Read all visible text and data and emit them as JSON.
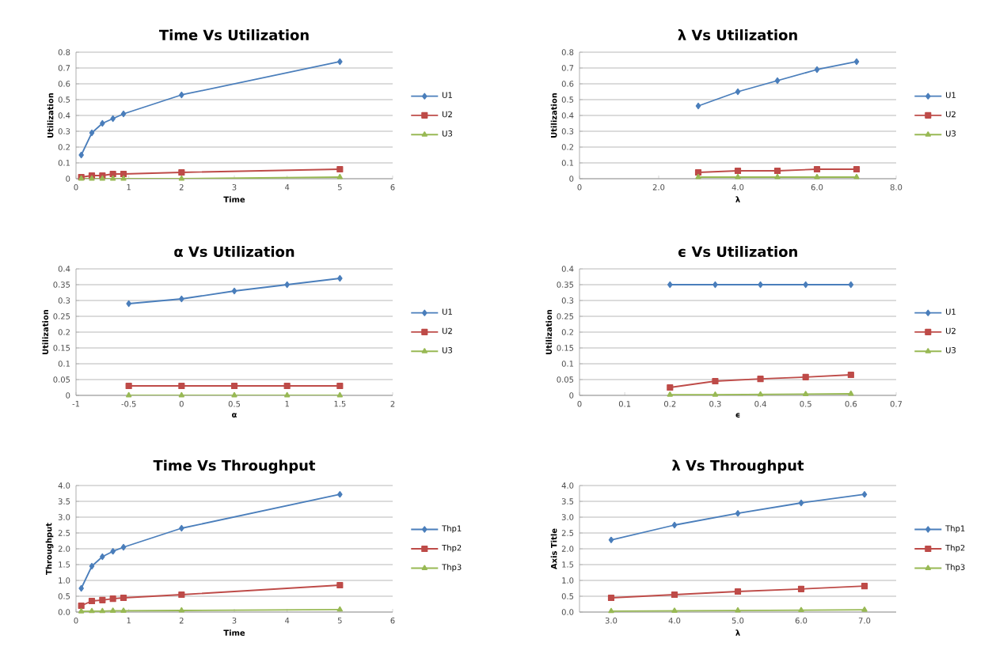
{
  "chart_data": [
    {
      "type": "line",
      "title": "Time Vs Utilization",
      "xlabel": "Time",
      "ylabel": "Utilization",
      "x": [
        0.1,
        0.3,
        0.5,
        0.7,
        0.9,
        2,
        5
      ],
      "xlim": [
        0,
        6
      ],
      "xticks": [
        0,
        1,
        2,
        3,
        4,
        5,
        6
      ],
      "ylim": [
        0,
        0.8
      ],
      "yticks": [
        0,
        0.1,
        0.2,
        0.3,
        0.4,
        0.5,
        0.6,
        0.7,
        0.8
      ],
      "grid": "y",
      "legend": "right",
      "series": [
        {
          "name": "U1",
          "color": "#4a7ebb",
          "marker": "diamond",
          "values": [
            0.15,
            0.29,
            0.35,
            0.38,
            0.41,
            0.53,
            0.74
          ]
        },
        {
          "name": "U2",
          "color": "#be4b48",
          "marker": "square",
          "values": [
            0.01,
            0.02,
            0.02,
            0.03,
            0.03,
            0.04,
            0.06
          ]
        },
        {
          "name": "U3",
          "color": "#98b954",
          "marker": "triangle",
          "values": [
            0,
            0,
            0,
            0,
            0,
            0,
            0.01
          ]
        }
      ]
    },
    {
      "type": "line",
      "title": "λ Vs Utilization",
      "xlabel": "λ",
      "ylabel": "Utilization",
      "x": [
        3,
        4,
        5,
        6,
        7
      ],
      "xlim": [
        0,
        8
      ],
      "xticks": [
        0,
        {
          "value": 2,
          "label": "2.0"
        },
        {
          "value": 4,
          "label": "4.0"
        },
        {
          "value": 6,
          "label": "6.0"
        },
        {
          "value": 8,
          "label": "8.0"
        }
      ],
      "ylim": [
        0,
        0.8
      ],
      "yticks": [
        0,
        0.1,
        0.2,
        0.3,
        0.4,
        0.5,
        0.6,
        0.7,
        0.8
      ],
      "grid": "y",
      "legend": "right",
      "series": [
        {
          "name": "U1",
          "color": "#4a7ebb",
          "marker": "diamond",
          "values": [
            0.46,
            0.55,
            0.62,
            0.69,
            0.74
          ]
        },
        {
          "name": "U2",
          "color": "#be4b48",
          "marker": "square",
          "values": [
            0.04,
            0.05,
            0.05,
            0.06,
            0.06
          ]
        },
        {
          "name": "U3",
          "color": "#98b954",
          "marker": "triangle",
          "values": [
            0.01,
            0.01,
            0.01,
            0.01,
            0.01
          ]
        }
      ]
    },
    {
      "type": "line",
      "title": "α Vs Utilization",
      "xlabel": "α",
      "ylabel": "Utilization",
      "x": [
        -0.5,
        0,
        0.5,
        1,
        1.5
      ],
      "xlim": [
        -1,
        2
      ],
      "xticks": [
        -1,
        -0.5,
        0,
        0.5,
        1,
        1.5,
        2
      ],
      "ylim": [
        0,
        0.4
      ],
      "yticks": [
        0,
        0.05,
        0.1,
        0.15,
        0.2,
        0.25,
        0.3,
        0.35,
        0.4
      ],
      "grid": "y",
      "legend": "right",
      "series": [
        {
          "name": "U1",
          "color": "#4a7ebb",
          "marker": "diamond",
          "values": [
            0.29,
            0.305,
            0.33,
            0.35,
            0.37
          ]
        },
        {
          "name": "U2",
          "color": "#be4b48",
          "marker": "square",
          "values": [
            0.03,
            0.03,
            0.03,
            0.03,
            0.03
          ]
        },
        {
          "name": "U3",
          "color": "#98b954",
          "marker": "triangle",
          "values": [
            0,
            0,
            0,
            0,
            0
          ]
        }
      ]
    },
    {
      "type": "line",
      "title": "ϵ Vs Utilization",
      "xlabel": "ϵ",
      "ylabel": "Utilization",
      "x": [
        0.2,
        0.3,
        0.4,
        0.5,
        0.6
      ],
      "xlim": [
        0,
        0.7
      ],
      "xticks": [
        0,
        0.1,
        0.2,
        0.3,
        0.4,
        0.5,
        0.6,
        0.7
      ],
      "ylim": [
        0,
        0.4
      ],
      "yticks": [
        0,
        0.05,
        0.1,
        0.15,
        0.2,
        0.25,
        0.3,
        0.35,
        0.4
      ],
      "grid": "y",
      "legend": "right",
      "series": [
        {
          "name": "U1",
          "color": "#4a7ebb",
          "marker": "diamond",
          "values": [
            0.35,
            0.35,
            0.35,
            0.35,
            0.35
          ]
        },
        {
          "name": "U2",
          "color": "#be4b48",
          "marker": "square",
          "values": [
            0.025,
            0.045,
            0.052,
            0.058,
            0.065
          ]
        },
        {
          "name": "U3",
          "color": "#98b954",
          "marker": "triangle",
          "values": [
            0.002,
            0.002,
            0.003,
            0.004,
            0.005
          ]
        }
      ]
    },
    {
      "type": "line",
      "title": "Time Vs Throughput",
      "xlabel": "Time",
      "ylabel": "Throughput",
      "x": [
        0.1,
        0.3,
        0.5,
        0.7,
        0.9,
        2,
        5
      ],
      "xlim": [
        0,
        6
      ],
      "xticks": [
        0,
        1,
        2,
        3,
        4,
        5,
        6
      ],
      "ylim": [
        0,
        4
      ],
      "yticks": [
        {
          "value": 0,
          "label": "0.0"
        },
        {
          "value": 0.5,
          "label": "0.5"
        },
        {
          "value": 1,
          "label": "1.0"
        },
        {
          "value": 1.5,
          "label": "1.5"
        },
        {
          "value": 2,
          "label": "2.0"
        },
        {
          "value": 2.5,
          "label": "2.5"
        },
        {
          "value": 3,
          "label": "3.0"
        },
        {
          "value": 3.5,
          "label": "3.5"
        },
        {
          "value": 4,
          "label": "4.0"
        }
      ],
      "grid": "y",
      "legend": "right",
      "series": [
        {
          "name": "Thp1",
          "color": "#4a7ebb",
          "marker": "diamond",
          "values": [
            0.75,
            1.45,
            1.75,
            1.92,
            2.05,
            2.65,
            3.72
          ]
        },
        {
          "name": "Thp2",
          "color": "#be4b48",
          "marker": "square",
          "values": [
            0.2,
            0.35,
            0.38,
            0.42,
            0.45,
            0.55,
            0.85
          ]
        },
        {
          "name": "Thp3",
          "color": "#98b954",
          "marker": "triangle",
          "values": [
            0.02,
            0.03,
            0.03,
            0.04,
            0.04,
            0.05,
            0.08
          ]
        }
      ]
    },
    {
      "type": "line",
      "title": "λ Vs Throughput",
      "xlabel": "λ",
      "ylabel": "Axis Title",
      "categories": [
        "3.0",
        "4.0",
        "5.0",
        "6.0",
        "7.0"
      ],
      "ylim": [
        0,
        4
      ],
      "yticks": [
        {
          "value": 0,
          "label": "0.0"
        },
        {
          "value": 0.5,
          "label": "0.5"
        },
        {
          "value": 1,
          "label": "1.0"
        },
        {
          "value": 1.5,
          "label": "1.5"
        },
        {
          "value": 2,
          "label": "2.0"
        },
        {
          "value": 2.5,
          "label": "2.5"
        },
        {
          "value": 3,
          "label": "3.0"
        },
        {
          "value": 3.5,
          "label": "3.5"
        },
        {
          "value": 4,
          "label": "4.0"
        }
      ],
      "grid": "y",
      "legend": "right",
      "series": [
        {
          "name": "Thp1",
          "color": "#4a7ebb",
          "marker": "diamond",
          "values": [
            2.28,
            2.75,
            3.12,
            3.45,
            3.72
          ]
        },
        {
          "name": "Thp2",
          "color": "#be4b48",
          "marker": "square",
          "values": [
            0.45,
            0.55,
            0.65,
            0.73,
            0.82
          ]
        },
        {
          "name": "Thp3",
          "color": "#98b954",
          "marker": "triangle",
          "values": [
            0.03,
            0.04,
            0.05,
            0.06,
            0.07
          ]
        }
      ]
    }
  ]
}
